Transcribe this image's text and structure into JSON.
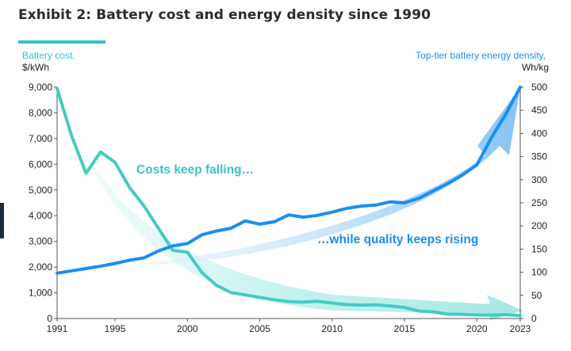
{
  "title": "Exhibit 2: Battery cost and energy density since 1990",
  "colors": {
    "cost": "#47cbc3",
    "density": "#1a8fef",
    "arrow_cost": "#bdf0ec",
    "arrow_density": "#a8d4fb"
  },
  "chart_data": {
    "type": "line",
    "left_axis": {
      "label_line1": "Battery cost,",
      "label_line2": "$/kWh",
      "ylim": [
        0,
        9000
      ],
      "ticks": [
        "0",
        "1,000",
        "2,000",
        "3,000",
        "4,000",
        "5,000",
        "6,000",
        "7,000",
        "8,000",
        "9,000"
      ]
    },
    "right_axis": {
      "label_line1": "Top-tier battery energy density,",
      "label_line2": "Wh/kg",
      "ylim": [
        0,
        500
      ],
      "ticks": [
        "0",
        "50",
        "100",
        "150",
        "200",
        "250",
        "300",
        "350",
        "400",
        "450",
        "500"
      ]
    },
    "x_ticks": [
      "1991",
      "1995",
      "2000",
      "2005",
      "2010",
      "2015",
      "2020",
      "2023"
    ],
    "annotations": {
      "cost": "Costs keep falling…",
      "density": "…while quality keeps rising"
    },
    "series": [
      {
        "axis": "left",
        "x": [
          1991,
          1992,
          1993,
          1994,
          1995,
          1996,
          1997,
          1998,
          1999,
          2000,
          2001,
          2002,
          2003,
          2004,
          2005,
          2006,
          2007,
          2008,
          2009,
          2010,
          2011,
          2012,
          2013,
          2014,
          2015,
          2016,
          2017,
          2018,
          2019,
          2020,
          2021,
          2022,
          2023
        ],
        "values": [
          8950,
          7100,
          5650,
          6480,
          6080,
          5100,
          4380,
          3510,
          2650,
          2580,
          1790,
          1290,
          1010,
          920,
          820,
          730,
          660,
          640,
          670,
          600,
          540,
          520,
          530,
          490,
          430,
          290,
          260,
          170,
          160,
          140,
          130,
          150,
          110
        ]
      },
      {
        "axis": "right",
        "x": [
          1991,
          1992,
          1993,
          1994,
          1995,
          1996,
          1997,
          1998,
          1999,
          2000,
          2001,
          2002,
          2003,
          2004,
          2005,
          2006,
          2007,
          2008,
          2009,
          2010,
          2011,
          2012,
          2013,
          2014,
          2015,
          2016,
          2017,
          2018,
          2019,
          2020,
          2021,
          2022,
          2023
        ],
        "values": [
          98,
          103,
          108,
          113,
          119,
          126,
          131,
          146,
          157,
          162,
          181,
          189,
          195,
          211,
          204,
          209,
          224,
          219,
          223,
          230,
          238,
          243,
          245,
          252,
          250,
          260,
          276,
          292,
          310,
          332,
          390,
          442,
          500
        ]
      }
    ]
  }
}
